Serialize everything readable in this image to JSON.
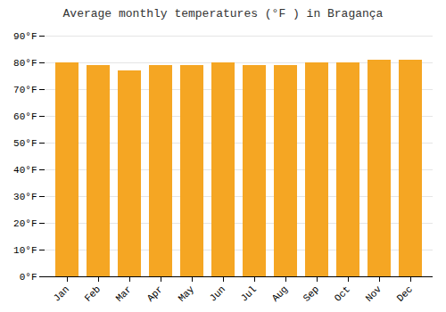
{
  "chart_data": {
    "type": "bar",
    "title": "Average monthly temperatures (°F ) in Bragança",
    "categories": [
      "Jan",
      "Feb",
      "Mar",
      "Apr",
      "May",
      "Jun",
      "Jul",
      "Aug",
      "Sep",
      "Oct",
      "Nov",
      "Dec"
    ],
    "values": [
      80,
      79,
      77,
      79,
      79,
      80,
      79,
      79,
      80,
      80,
      81,
      81
    ],
    "color": "#F5A623",
    "ylim": [
      0,
      90
    ],
    "yticks": [
      {
        "value": 0,
        "label": "0°F"
      },
      {
        "value": 10,
        "label": "10°F"
      },
      {
        "value": 20,
        "label": "20°F"
      },
      {
        "value": 30,
        "label": "30°F"
      },
      {
        "value": 40,
        "label": "40°F"
      },
      {
        "value": 50,
        "label": "50°F"
      },
      {
        "value": 60,
        "label": "60°F"
      },
      {
        "value": 70,
        "label": "70°F"
      },
      {
        "value": 80,
        "label": "80°F"
      },
      {
        "value": 90,
        "label": "90°F"
      }
    ],
    "grid": true
  }
}
